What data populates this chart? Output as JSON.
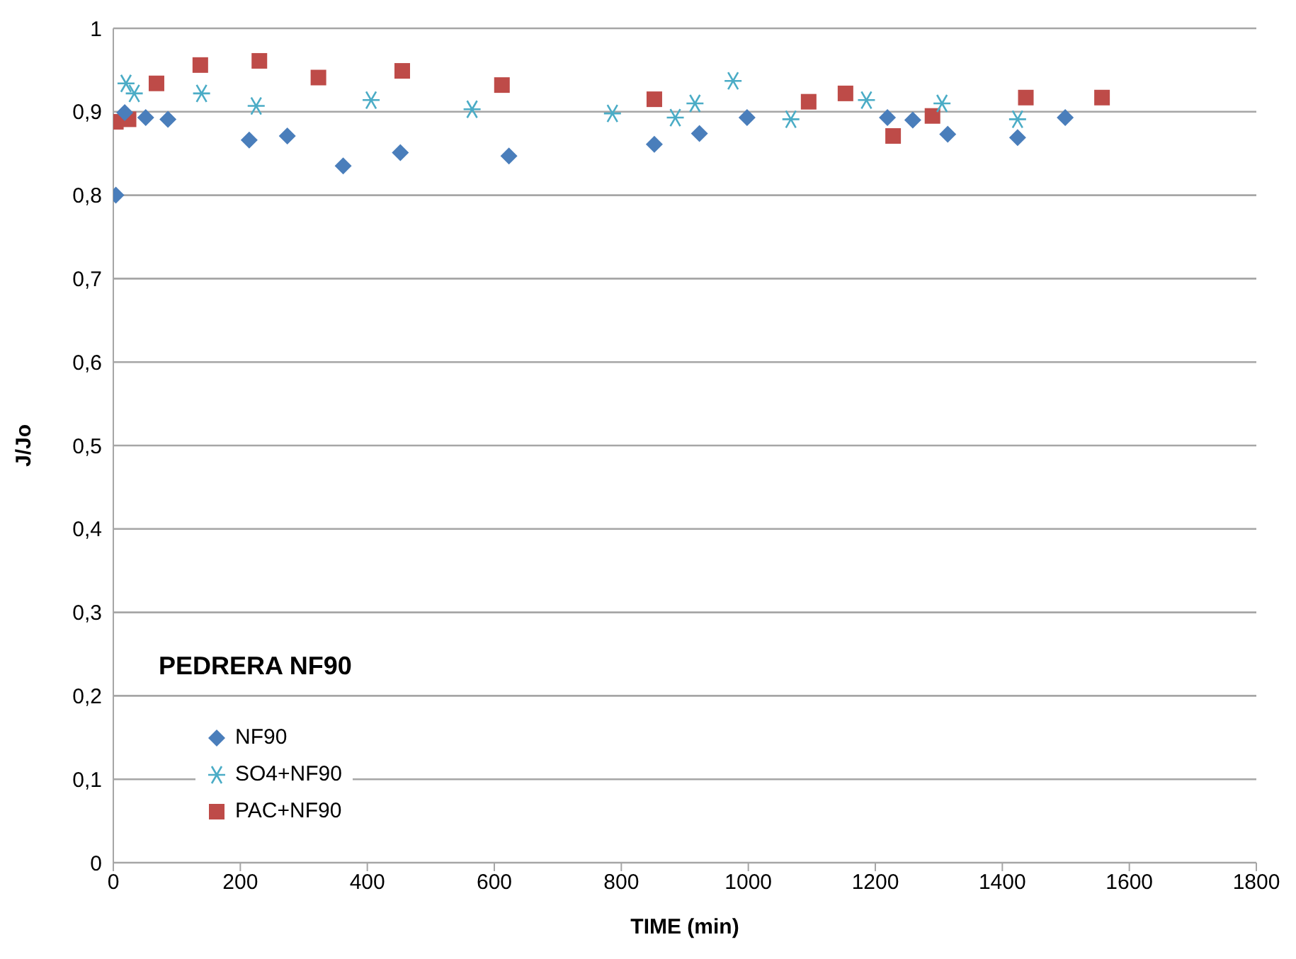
{
  "chart_data": {
    "type": "scatter",
    "title": "PEDRERA NF90",
    "xlabel": "TIME (min)",
    "ylabel": "J/Jo",
    "xlim": [
      0,
      1800
    ],
    "xticks": [
      0,
      200,
      400,
      600,
      800,
      1000,
      1200,
      1400,
      1600,
      1800
    ],
    "ylim": [
      0,
      1
    ],
    "yticks": [
      0,
      {
        "value": 0.1,
        "label": "0,1"
      },
      {
        "value": 0.2,
        "label": "0,2"
      },
      {
        "value": 0.3,
        "label": "0,3"
      },
      {
        "value": 0.4,
        "label": "0,4"
      },
      {
        "value": 0.5,
        "label": "0,5"
      },
      {
        "value": 0.6,
        "label": "0,6"
      },
      {
        "value": 0.7,
        "label": "0,7"
      },
      {
        "value": 0.8,
        "label": "0,8"
      },
      {
        "value": 0.9,
        "label": "0,9"
      },
      1
    ],
    "grid": "y",
    "legend": "bottom left",
    "series": [
      {
        "name": "NF90",
        "color": "#4a7ebb",
        "marker": "diamond",
        "x": [
          4,
          18,
          51,
          86,
          214,
          274,
          362,
          452,
          623,
          852,
          923,
          998,
          1219,
          1259,
          1314,
          1424,
          1499
        ],
        "values": [
          0.8,
          0.899,
          0.893,
          0.891,
          0.866,
          0.871,
          0.835,
          0.851,
          0.847,
          0.861,
          0.874,
          0.893,
          0.893,
          0.89,
          0.873,
          0.869,
          0.893
        ]
      },
      {
        "name": "SO4+NF90",
        "color": "#4bacc6",
        "marker": "cross",
        "x": [
          20,
          33,
          139,
          225,
          406,
          565,
          786,
          885,
          916,
          976,
          1067,
          1186,
          1305,
          1424
        ],
        "values": [
          0.934,
          0.922,
          0.922,
          0.907,
          0.914,
          0.903,
          0.898,
          0.893,
          0.91,
          0.937,
          0.891,
          0.914,
          0.91,
          0.891
        ]
      },
      {
        "name": "PAC+NF90",
        "color": "#be4b48",
        "marker": "square",
        "x": [
          4,
          24,
          68,
          137,
          230,
          323,
          455,
          612,
          852,
          1095,
          1153,
          1228,
          1290,
          1437,
          1557
        ],
        "values": [
          0.888,
          0.891,
          0.934,
          0.956,
          0.961,
          0.941,
          0.949,
          0.932,
          0.915,
          0.912,
          0.922,
          0.871,
          0.895,
          0.917,
          0.917
        ]
      }
    ]
  }
}
